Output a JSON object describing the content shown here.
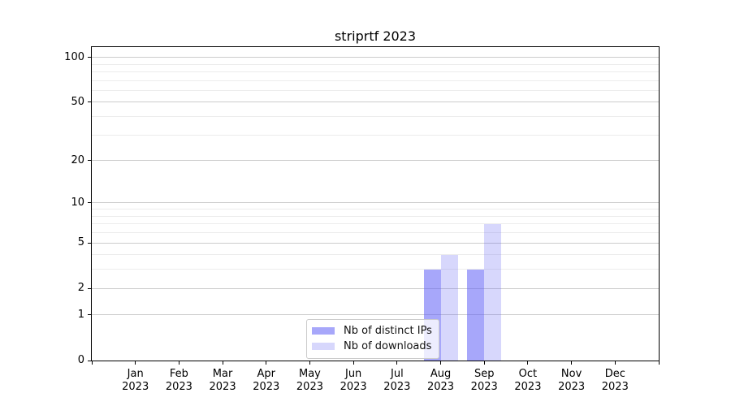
{
  "chart_data": {
    "type": "bar",
    "title": "striprtf 2023",
    "yscale": "log1p",
    "ylim": [
      0,
      117
    ],
    "y_major_ticks": [
      0,
      1,
      2,
      5,
      10,
      20,
      50,
      100
    ],
    "y_minor_gridlines": [
      3,
      4,
      6,
      7,
      8,
      9,
      30,
      40,
      60,
      70,
      80,
      90
    ],
    "categories": [
      "Jan 2023",
      "Feb 2023",
      "Mar 2023",
      "Apr 2023",
      "May 2023",
      "Jun 2023",
      "Jul 2023",
      "Aug 2023",
      "Sep 2023",
      "Oct 2023",
      "Nov 2023",
      "Dec 2023"
    ],
    "series": [
      {
        "name": "Nb of distinct IPs",
        "color": "rgba(95,95,245,0.55)",
        "values": [
          0,
          0,
          0,
          0,
          0,
          0,
          0,
          3,
          3,
          0,
          0,
          0
        ]
      },
      {
        "name": "Nb of downloads",
        "color": "rgba(95,95,245,0.25)",
        "values": [
          0,
          0,
          0,
          0,
          0,
          0,
          0,
          4,
          7,
          0,
          0,
          0
        ]
      }
    ],
    "legend": {
      "entries": [
        "Nb of distinct IPs",
        "Nb of downloads"
      ],
      "location": "lower center"
    },
    "grid": "on",
    "xlabel": "",
    "ylabel": ""
  },
  "colors": {
    "grid_major": "#cccccc",
    "grid_minor": "#ececec",
    "spine": "#000000",
    "tick": "#000000",
    "text": "#000000",
    "legend_border": "#cccccc",
    "legend_bg": "rgba(255,255,255,0.8)",
    "background": "#ffffff"
  }
}
